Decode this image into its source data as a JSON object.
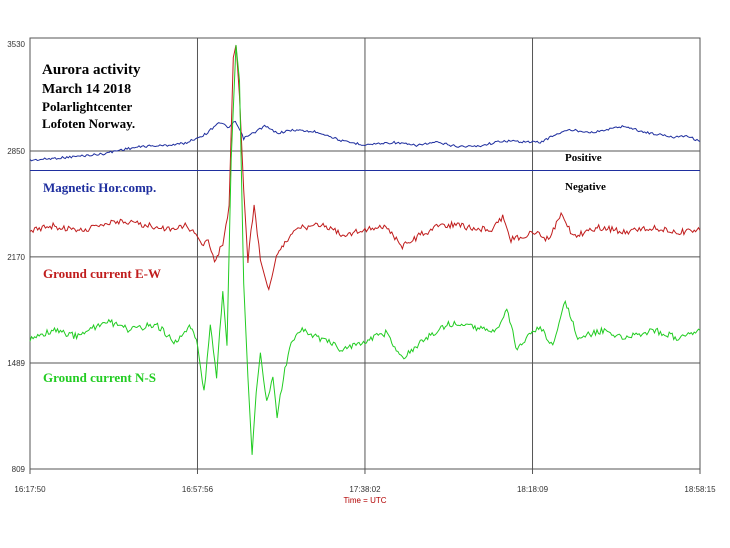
{
  "chart_data": {
    "type": "line",
    "title": "Aurora activity",
    "subtitle": "March 14 2018",
    "source_lines": [
      "Polarlightcenter",
      "Lofoten Norway."
    ],
    "xlabel": "Time = UTC",
    "x_ticks": [
      "16:17:50",
      "16:57:56",
      "17:38:02",
      "18:18:09",
      "18:58:15"
    ],
    "y_ticks": [
      3530,
      2850,
      2170,
      1489,
      809
    ],
    "ylim": [
      809,
      3530
    ],
    "grid": true,
    "reference_lines": [
      {
        "label": "Positive",
        "value": 2850
      },
      {
        "label": "Negative",
        "value": 2725
      }
    ],
    "series": [
      {
        "name": "Magnetic Hor.comp.",
        "color": "#1f2f9f",
        "points": [
          [
            "16:17:50",
            2790
          ],
          [
            "16:27:00",
            2810
          ],
          [
            "16:35:00",
            2830
          ],
          [
            "16:40:00",
            2860
          ],
          [
            "16:45:00",
            2880
          ],
          [
            "16:50:00",
            2885
          ],
          [
            "16:55:00",
            2900
          ],
          [
            "17:00:00",
            2960
          ],
          [
            "17:03:00",
            3035
          ],
          [
            "17:05:30",
            3000
          ],
          [
            "17:07:00",
            3040
          ],
          [
            "17:09:00",
            2930
          ],
          [
            "17:11:00",
            2960
          ],
          [
            "17:14:00",
            3010
          ],
          [
            "17:17:00",
            2965
          ],
          [
            "17:21:00",
            2985
          ],
          [
            "17:27:00",
            2970
          ],
          [
            "17:33:00",
            2910
          ],
          [
            "17:38:00",
            2890
          ],
          [
            "17:45:00",
            2905
          ],
          [
            "17:50:00",
            2885
          ],
          [
            "17:55:00",
            2905
          ],
          [
            "18:00:00",
            2880
          ],
          [
            "18:05:00",
            2880
          ],
          [
            "18:11:00",
            2915
          ],
          [
            "18:20:00",
            2905
          ],
          [
            "18:24:00",
            2960
          ],
          [
            "18:27:00",
            2985
          ],
          [
            "18:33:00",
            2970
          ],
          [
            "18:40:00",
            3010
          ],
          [
            "18:45:00",
            2970
          ],
          [
            "18:52:00",
            2940
          ],
          [
            "18:55:00",
            2950
          ],
          [
            "18:58:15",
            2910
          ]
        ]
      },
      {
        "name": "Ground current E-W",
        "color": "#c01c1c",
        "points": [
          [
            "16:17:50",
            2330
          ],
          [
            "16:23:00",
            2370
          ],
          [
            "16:30:00",
            2340
          ],
          [
            "16:38:00",
            2400
          ],
          [
            "16:45:00",
            2380
          ],
          [
            "16:50:00",
            2350
          ],
          [
            "16:55:00",
            2370
          ],
          [
            "16:57:56",
            2300
          ],
          [
            "16:59:00",
            2250
          ],
          [
            "17:00:30",
            2270
          ],
          [
            "17:02:00",
            2150
          ],
          [
            "17:04:00",
            2250
          ],
          [
            "17:05:30",
            2500
          ],
          [
            "17:06:30",
            3450
          ],
          [
            "17:07:10",
            3530
          ],
          [
            "17:08:00",
            3200
          ],
          [
            "17:09:00",
            2600
          ],
          [
            "17:10:00",
            2150
          ],
          [
            "17:11:30",
            2500
          ],
          [
            "17:13:00",
            2150
          ],
          [
            "17:14:00",
            2050
          ],
          [
            "17:15:00",
            1950
          ],
          [
            "17:16:30",
            2150
          ],
          [
            "17:18:30",
            2250
          ],
          [
            "17:22:00",
            2350
          ],
          [
            "17:28:00",
            2380
          ],
          [
            "17:33:00",
            2310
          ],
          [
            "17:38:02",
            2350
          ],
          [
            "17:43:00",
            2360
          ],
          [
            "17:47:00",
            2240
          ],
          [
            "17:52:00",
            2320
          ],
          [
            "17:57:00",
            2380
          ],
          [
            "18:03:00",
            2360
          ],
          [
            "18:08:00",
            2340
          ],
          [
            "18:11:00",
            2430
          ],
          [
            "18:13:00",
            2280
          ],
          [
            "18:16:00",
            2310
          ],
          [
            "18:19:00",
            2330
          ],
          [
            "18:22:00",
            2280
          ],
          [
            "18:25:00",
            2450
          ],
          [
            "18:28:00",
            2300
          ],
          [
            "18:34:00",
            2360
          ],
          [
            "18:40:00",
            2330
          ],
          [
            "18:47:00",
            2360
          ],
          [
            "18:53:00",
            2330
          ],
          [
            "18:58:15",
            2340
          ]
        ]
      },
      {
        "name": "Ground current N-S",
        "color": "#22cc22",
        "points": [
          [
            "16:17:50",
            1640
          ],
          [
            "16:23:00",
            1700
          ],
          [
            "16:29:00",
            1660
          ],
          [
            "16:36:00",
            1760
          ],
          [
            "16:42:00",
            1700
          ],
          [
            "16:48:00",
            1740
          ],
          [
            "16:53:00",
            1610
          ],
          [
            "16:56:00",
            1740
          ],
          [
            "16:58:00",
            1600
          ],
          [
            "16:59:30",
            1300
          ],
          [
            "17:01:00",
            1750
          ],
          [
            "17:02:30",
            1400
          ],
          [
            "17:04:00",
            1950
          ],
          [
            "17:05:00",
            1600
          ],
          [
            "17:06:00",
            2800
          ],
          [
            "17:07:10",
            3530
          ],
          [
            "17:08:00",
            3300
          ],
          [
            "17:09:00",
            2000
          ],
          [
            "17:10:00",
            1400
          ],
          [
            "17:11:00",
            900
          ],
          [
            "17:12:00",
            1300
          ],
          [
            "17:13:00",
            1550
          ],
          [
            "17:14:30",
            1250
          ],
          [
            "17:16:00",
            1400
          ],
          [
            "17:17:00",
            1150
          ],
          [
            "17:18:30",
            1390
          ],
          [
            "17:20:00",
            1600
          ],
          [
            "17:23:00",
            1700
          ],
          [
            "17:28:00",
            1640
          ],
          [
            "17:33:00",
            1570
          ],
          [
            "17:38:02",
            1630
          ],
          [
            "17:43:00",
            1680
          ],
          [
            "17:47:00",
            1520
          ],
          [
            "17:52:00",
            1640
          ],
          [
            "17:58:00",
            1740
          ],
          [
            "18:04:00",
            1720
          ],
          [
            "18:09:00",
            1680
          ],
          [
            "18:12:00",
            1830
          ],
          [
            "18:14:30",
            1570
          ],
          [
            "18:17:00",
            1660
          ],
          [
            "18:20:00",
            1720
          ],
          [
            "18:23:00",
            1600
          ],
          [
            "18:26:00",
            1890
          ],
          [
            "18:29:00",
            1650
          ],
          [
            "18:35:00",
            1700
          ],
          [
            "18:40:00",
            1650
          ],
          [
            "18:47:00",
            1700
          ],
          [
            "18:53:00",
            1650
          ],
          [
            "18:58:15",
            1700
          ]
        ]
      }
    ]
  }
}
